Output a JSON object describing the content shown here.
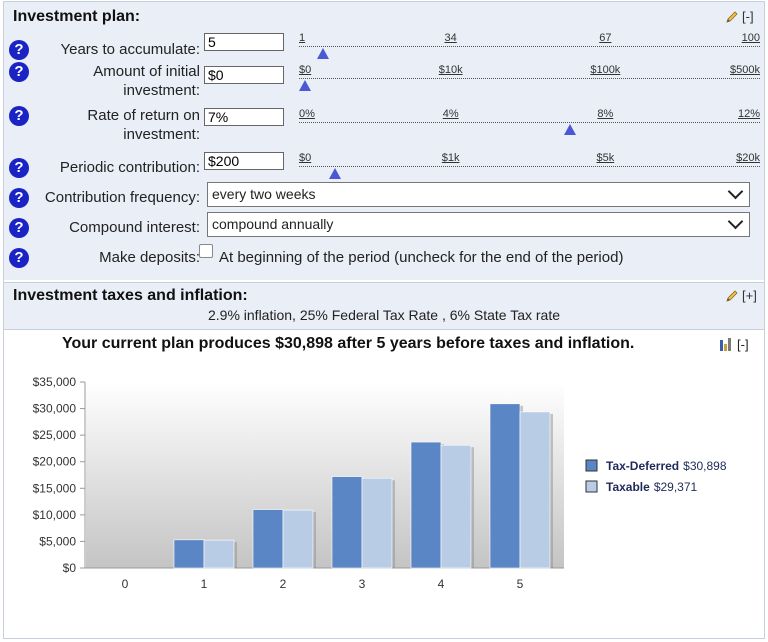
{
  "investment_plan": {
    "title": "Investment plan:",
    "collapse_label": "[-]",
    "rows": {
      "years": {
        "label": "Years to accumulate:",
        "value": "5"
      },
      "initial": {
        "label_line1": "Amount of initial",
        "label_line2": "investment:",
        "value": "$0"
      },
      "rate": {
        "label_line1": "Rate of return on",
        "label_line2": "investment:",
        "value": "7%"
      },
      "periodic": {
        "label": "Periodic contribution:",
        "value": "$200"
      },
      "frequency": {
        "label": "Contribution frequency:",
        "selected": "every two weeks"
      },
      "compound": {
        "label": "Compound interest:",
        "selected": "compound annually"
      },
      "deposits": {
        "label": "Make deposits:",
        "checked": false,
        "description": "At beginning of the period (uncheck for the end of the period)"
      }
    },
    "sliders": {
      "years": {
        "ticks": [
          "1",
          "34",
          "67",
          "100"
        ],
        "value_fraction": 0.04
      },
      "initial": {
        "ticks": [
          "$0",
          "$10k",
          "$100k",
          "$500k"
        ],
        "value_fraction": 0.0
      },
      "rate": {
        "ticks": [
          "0%",
          "4%",
          "8%",
          "12%"
        ],
        "value_fraction": 0.583
      },
      "periodic": {
        "ticks": [
          "$0",
          "$1k",
          "$5k",
          "$20k"
        ],
        "value_fraction": 0.067
      }
    }
  },
  "taxes": {
    "title": "Investment taxes and inflation:",
    "expand_label": "[+]",
    "summary": "2.9% inflation, 25% Federal Tax Rate , 6% State Tax rate"
  },
  "result": {
    "headline": "Your current plan produces $30,898 after 5 years before taxes and inflation.",
    "collapse_label": "[-]"
  },
  "colors": {
    "tax_deferred": "#5b86c5",
    "taxable": "#b8cce6",
    "help_icon": "#1a23c4",
    "panel_bg": "#e9eef7"
  },
  "chart_data": {
    "type": "bar",
    "categories": [
      "0",
      "1",
      "2",
      "3",
      "4",
      "5"
    ],
    "series": [
      {
        "name": "Tax-Deferred",
        "values": [
          0,
          5300,
          11000,
          17200,
          23700,
          30898
        ]
      },
      {
        "name": "Taxable",
        "values": [
          0,
          5250,
          10900,
          16900,
          23100,
          29371
        ]
      }
    ],
    "yticks": [
      "$35,000",
      "$30,000",
      "$25,000",
      "$20,000",
      "$15,000",
      "$10,000",
      "$5,000",
      "$0"
    ],
    "ylim": [
      0,
      35000
    ],
    "legend": [
      {
        "name": "Tax-Deferred",
        "value": "$30,898"
      },
      {
        "name": "Taxable",
        "value": "$29,371"
      }
    ],
    "legend_position": "right",
    "grid": false
  }
}
